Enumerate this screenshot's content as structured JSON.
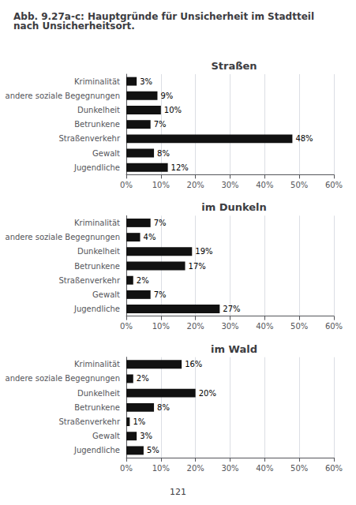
{
  "title": "Abb. 9.27a-c: Hauptgründe für Unsicherheit im Stadtteil nach Unsicherheitsort.",
  "annotations": [
    "121"
  ],
  "chart_data": [
    {
      "type": "bar",
      "orientation": "horizontal",
      "title": "Straßen",
      "categories": [
        "Kriminalität",
        "andere soziale Begegnungen",
        "Dunkelheit",
        "Betrunkene",
        "Straßenverkehr",
        "Gewalt",
        "Jugendliche"
      ],
      "values": [
        3,
        9,
        10,
        7,
        48,
        8,
        12
      ],
      "value_labels": [
        "3%",
        "9%",
        "10%",
        "7%",
        "48%",
        "8%",
        "12%"
      ],
      "data_labels": true,
      "color": "#111111",
      "xlim": [
        0,
        60
      ],
      "xticks": [
        {
          "value": 0,
          "label": "0%"
        },
        {
          "value": 10,
          "label": "10%"
        },
        {
          "value": 20,
          "label": "20%"
        },
        {
          "value": 30,
          "label": "30%"
        },
        {
          "value": 40,
          "label": "40%"
        },
        {
          "value": 50,
          "label": "50%"
        },
        {
          "value": 60,
          "label": "60%"
        }
      ],
      "grid": true
    },
    {
      "type": "bar",
      "orientation": "horizontal",
      "title": "im Dunkeln",
      "categories": [
        "Kriminalität",
        "andere soziale Begegnungen",
        "Dunkelheit",
        "Betrunkene",
        "Straßenverkehr",
        "Gewalt",
        "Jugendliche"
      ],
      "values": [
        7,
        4,
        19,
        17,
        2,
        7,
        27
      ],
      "value_labels": [
        "7%",
        "4%",
        "19%",
        "17%",
        "2%",
        "7%",
        "27%"
      ],
      "data_labels": true,
      "color": "#111111",
      "xlim": [
        0,
        60
      ],
      "xticks": [
        {
          "value": 0,
          "label": "0%"
        },
        {
          "value": 10,
          "label": "10%"
        },
        {
          "value": 20,
          "label": "20%"
        },
        {
          "value": 30,
          "label": "30%"
        },
        {
          "value": 40,
          "label": "40%"
        },
        {
          "value": 50,
          "label": "50%"
        },
        {
          "value": 60,
          "label": "60%"
        }
      ],
      "grid": true
    },
    {
      "type": "bar",
      "orientation": "horizontal",
      "title": "im Wald",
      "categories": [
        "Kriminalität",
        "andere soziale Begegnungen",
        "Dunkelheit",
        "Betrunkene",
        "Straßenverkehr",
        "Gewalt",
        "Jugendliche"
      ],
      "values": [
        16,
        2,
        20,
        8,
        1,
        3,
        5
      ],
      "value_labels": [
        "16%",
        "2%",
        "20%",
        "8%",
        "1%",
        "3%",
        "5%"
      ],
      "data_labels": true,
      "color": "#111111",
      "xlim": [
        0,
        60
      ],
      "xticks": [
        {
          "value": 0,
          "label": "0%"
        },
        {
          "value": 10,
          "label": "10%"
        },
        {
          "value": 20,
          "label": "20%"
        },
        {
          "value": 30,
          "label": "30%"
        },
        {
          "value": 40,
          "label": "40%"
        },
        {
          "value": 50,
          "label": "50%"
        },
        {
          "value": 60,
          "label": "60%"
        }
      ],
      "grid": true
    }
  ]
}
